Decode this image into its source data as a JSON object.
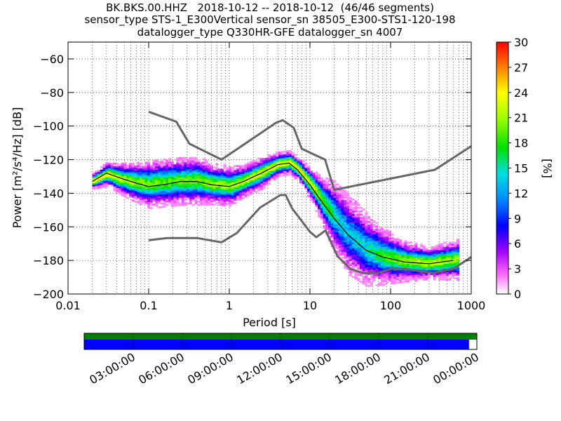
{
  "title": {
    "line1": "BK.BKS.00.HHZ   2018-10-12 -- 2018-10-12  (46/46 segments)",
    "line2": "sensor_type STS-1_E300Vertical sensor_sn 38505_E300-STS1-120-198",
    "line3": "datalogger_type Q330HR-GFE datalogger_sn 4007"
  },
  "colorbar": {
    "label": "[%]",
    "ticks": [
      "0",
      "3",
      "6",
      "9",
      "12",
      "15",
      "18",
      "21",
      "24",
      "27",
      "30"
    ]
  },
  "timeline": {
    "ticks": [
      "03:00:00",
      "06:00:00",
      "09:00:00",
      "12:00:00",
      "15:00:00",
      "18:00:00",
      "21:00:00",
      "00:00:00"
    ],
    "coverage_fraction": 0.98,
    "coverage_top_color": "#008000",
    "coverage_bottom_color": "#0000ff"
  },
  "chart_data": {
    "type": "heatmap",
    "title": "BK.BKS.00.HHZ   2018-10-12 -- 2018-10-12  (46/46 segments)",
    "xlabel": "Period [s]",
    "ylabel": "Power [m²/s⁴/Hz] [dB]",
    "x_scale": "log",
    "xlim": [
      0.01,
      1000
    ],
    "ylim": [
      -200,
      -50
    ],
    "x_ticks": [
      {
        "value": 0.01,
        "label": "0.01"
      },
      {
        "value": 0.1,
        "label": "0.1"
      },
      {
        "value": 1,
        "label": "1"
      },
      {
        "value": 10,
        "label": "10"
      },
      {
        "value": 100,
        "label": "100"
      },
      {
        "value": 1000,
        "label": "1000"
      }
    ],
    "y_ticks": [
      -60,
      -80,
      -100,
      -120,
      -140,
      -160,
      -180,
      -200
    ],
    "grid": true,
    "colormap": "pqlx (white-magenta-blue-cyan-green-yellow-red)",
    "color_range_percent": [
      0,
      30
    ],
    "series": [
      {
        "kind": "noise-model-upper",
        "color": "#666666",
        "x": [
          0.1,
          0.22,
          0.32,
          0.8,
          3.8,
          4.6,
          6.3,
          7.9,
          15.4,
          20,
          354.8,
          1000
        ],
        "y": [
          -91.5,
          -97.4,
          -110.5,
          -120,
          -98,
          -96.5,
          -101,
          -113.5,
          -120,
          -138,
          -126,
          -112
        ]
      },
      {
        "kind": "noise-model-lower",
        "color": "#666666",
        "x": [
          0.1,
          0.17,
          0.4,
          0.8,
          1.24,
          2.4,
          4.3,
          5,
          6,
          10,
          12,
          15.6,
          21.9,
          31.6,
          45,
          70,
          101,
          154,
          328,
          600,
          1000
        ],
        "y": [
          -168,
          -166.7,
          -166.7,
          -169.2,
          -163.7,
          -148.6,
          -141.1,
          -141.1,
          -149,
          -163,
          -166.2,
          -162.1,
          -177.5,
          -185,
          -187.5,
          -187.5,
          -185,
          -185,
          -187.5,
          -185,
          -178
        ]
      },
      {
        "kind": "mode",
        "color": "#000000",
        "x": [
          0.02,
          0.03,
          0.045,
          0.07,
          0.1,
          0.15,
          0.25,
          0.4,
          0.6,
          1,
          1.5,
          2.5,
          4,
          5.5,
          7,
          10,
          14,
          20,
          30,
          50,
          80,
          150,
          300,
          600
        ],
        "y": [
          -133,
          -128,
          -131,
          -134,
          -136,
          -135,
          -133,
          -133,
          -135,
          -136,
          -133,
          -128,
          -123,
          -122,
          -126,
          -135,
          -145,
          -155,
          -165,
          -174,
          -178,
          -181,
          -182,
          -180
        ]
      }
    ],
    "density_band": [
      {
        "x": 0.02,
        "y": -133,
        "spread": 2
      },
      {
        "x": 0.03,
        "y": -129,
        "spread": 3
      },
      {
        "x": 0.045,
        "y": -132,
        "spread": 4
      },
      {
        "x": 0.07,
        "y": -134,
        "spread": 5
      },
      {
        "x": 0.1,
        "y": -135,
        "spread": 6
      },
      {
        "x": 0.15,
        "y": -134,
        "spread": 6
      },
      {
        "x": 0.25,
        "y": -133,
        "spread": 6
      },
      {
        "x": 0.4,
        "y": -133,
        "spread": 6
      },
      {
        "x": 0.6,
        "y": -135,
        "spread": 5
      },
      {
        "x": 1,
        "y": -136,
        "spread": 5
      },
      {
        "x": 1.5,
        "y": -133,
        "spread": 4
      },
      {
        "x": 2.5,
        "y": -128,
        "spread": 4
      },
      {
        "x": 4,
        "y": -123,
        "spread": 3
      },
      {
        "x": 5.5,
        "y": -122,
        "spread": 3
      },
      {
        "x": 7,
        "y": -126,
        "spread": 3
      },
      {
        "x": 10,
        "y": -135,
        "spread": 4
      },
      {
        "x": 14,
        "y": -145,
        "spread": 6
      },
      {
        "x": 20,
        "y": -155,
        "spread": 9
      },
      {
        "x": 30,
        "y": -165,
        "spread": 10
      },
      {
        "x": 50,
        "y": -174,
        "spread": 9
      },
      {
        "x": 80,
        "y": -178,
        "spread": 7
      },
      {
        "x": 150,
        "y": -181,
        "spread": 5
      },
      {
        "x": 300,
        "y": -182,
        "spread": 4
      },
      {
        "x": 600,
        "y": -180,
        "spread": 5
      }
    ]
  }
}
